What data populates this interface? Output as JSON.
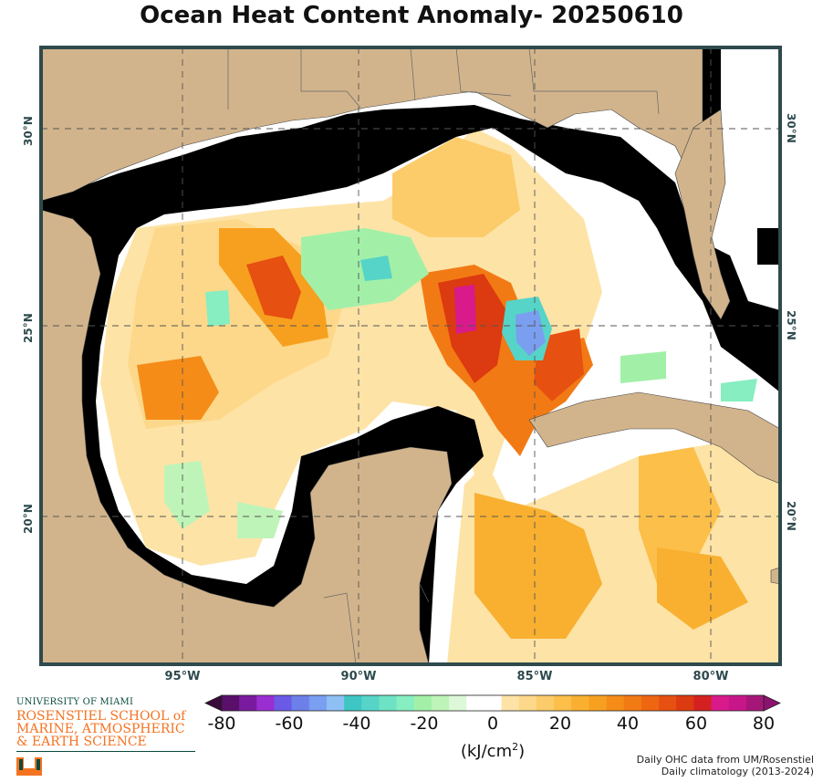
{
  "title": "Ocean Heat Content Anomaly- 20250610",
  "map": {
    "lon_labels": [
      "95°W",
      "90°W",
      "85°W",
      "80°W"
    ],
    "lat_labels": [
      "30°N",
      "25°N",
      "20°N"
    ],
    "colors": {
      "land": "#d2b48c",
      "shelf": "#000000",
      "frame": "#2e4a4d",
      "border": "#555555"
    }
  },
  "colorbar": {
    "ticks": [
      "-80",
      "-60",
      "-40",
      "-20",
      "0",
      "20",
      "40",
      "60",
      "80"
    ],
    "units_base": "(kJ/cm",
    "units_sup": "2",
    "units_end": ")",
    "colors": [
      "#3a0a3a",
      "#5a0f6b",
      "#7a1a9e",
      "#9a2ed0",
      "#6a5ae6",
      "#6d7fe8",
      "#7a9ef0",
      "#8ec0f4",
      "#3ec6c4",
      "#56d4c8",
      "#6ee2c4",
      "#86eec0",
      "#a2f0a8",
      "#bff4b8",
      "#dcf8d8",
      "#ffffff",
      "#ffffff",
      "#fde3a6",
      "#fdd88a",
      "#fccb6a",
      "#fbbf4a",
      "#f9b030",
      "#f7a020",
      "#f58c18",
      "#f27a14",
      "#ee6612",
      "#e65010",
      "#dc3a10",
      "#d42020",
      "#d81a8a",
      "#c8168a",
      "#a61678",
      "#8c1270"
    ]
  },
  "credits": {
    "line1": "Daily OHC data from UM/Rosenstiel",
    "line2": "Daily climatology (2013-2024)"
  },
  "logo": {
    "university": "UNIVERSITY OF MIAMI",
    "school_line1": "ROSENSTIEL SCHOOL of",
    "school_line2": "MARINE, ATMOSPHERIC",
    "school_line3": "& EARTH SCIENCE"
  }
}
